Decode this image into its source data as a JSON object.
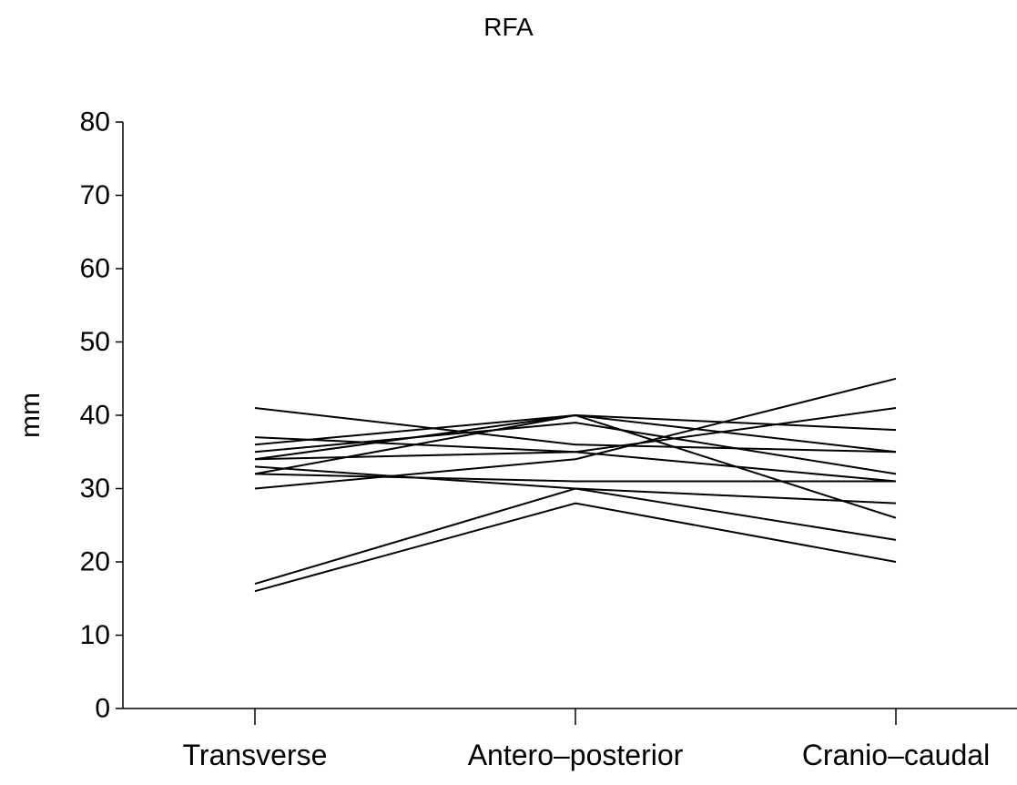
{
  "chart_data": {
    "type": "line",
    "title": "RFA",
    "xlabel": "",
    "ylabel": "mm",
    "categories": [
      "Transverse",
      "Antero–posterior",
      "Cranio–caudal"
    ],
    "ylim": [
      0,
      80
    ],
    "yticks": [
      0,
      10,
      20,
      30,
      40,
      50,
      60,
      70,
      80
    ],
    "grid": false,
    "legend": "none",
    "line_color": "#000000",
    "series": [
      {
        "values": [
          41,
          36,
          35
        ]
      },
      {
        "values": [
          37,
          35,
          31
        ]
      },
      {
        "values": [
          36,
          40,
          38
        ]
      },
      {
        "values": [
          35,
          39,
          32
        ]
      },
      {
        "values": [
          34,
          40,
          35
        ]
      },
      {
        "values": [
          34,
          35,
          41
        ]
      },
      {
        "values": [
          33,
          30,
          28
        ]
      },
      {
        "values": [
          32,
          31,
          31
        ]
      },
      {
        "values": [
          32,
          40,
          26
        ]
      },
      {
        "values": [
          30,
          34,
          45
        ]
      },
      {
        "values": [
          17,
          30,
          23
        ]
      },
      {
        "values": [
          16,
          28,
          20
        ]
      }
    ]
  }
}
